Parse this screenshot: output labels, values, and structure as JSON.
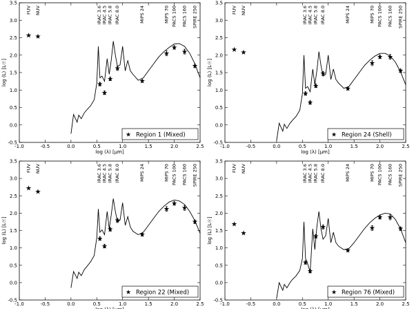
{
  "chart_data": [
    {
      "type": "line",
      "xlabel": "log (λ) [μm]",
      "ylabel": "log (L) [L☉]",
      "xlim": [
        -1.0,
        2.5
      ],
      "ylim": [
        -0.5,
        3.5
      ],
      "xticks": [
        "-1.0",
        "-0.5",
        "0.0",
        "0.5",
        "1.0",
        "1.5",
        "2.0",
        "2.5"
      ],
      "yticks": [
        "-0.5",
        "0.0",
        "0.5",
        "1.0",
        "1.5",
        "2.0",
        "2.5",
        "3.0",
        "3.5"
      ],
      "bands": [
        "FUV",
        "NUV",
        "IRAC 3.6",
        "IRAC 4.5",
        "IRAC 5.8",
        "IRAC 8.0",
        "MIPS 24",
        "MIPS 70",
        "PACS 100",
        "PACS 160",
        "SPIRE 250"
      ],
      "legend": "Region 1 (Mixed)",
      "observations": {
        "x": [
          -0.82,
          -0.64,
          0.56,
          0.65,
          0.76,
          0.9,
          1.38,
          1.85,
          2.0,
          2.2,
          2.4
        ],
        "y": [
          2.56,
          2.53,
          1.17,
          0.92,
          1.32,
          1.62,
          1.26,
          2.05,
          2.22,
          2.1,
          1.69
        ]
      },
      "model": {
        "x": [
          0.0,
          0.05,
          0.12,
          0.15,
          0.2,
          0.26,
          0.3,
          0.38,
          0.45,
          0.5,
          0.53,
          0.56,
          0.6,
          0.65,
          0.7,
          0.74,
          0.78,
          0.82,
          0.86,
          0.9,
          0.95,
          1.0,
          1.05,
          1.1,
          1.15,
          1.2,
          1.3,
          1.4,
          1.5,
          1.6,
          1.7,
          1.8,
          1.9,
          2.0,
          2.1,
          2.2,
          2.3,
          2.4,
          2.5
        ],
        "y": [
          -0.25,
          0.3,
          0.08,
          0.28,
          0.18,
          0.35,
          0.42,
          0.55,
          0.72,
          1.2,
          2.25,
          1.35,
          1.4,
          1.25,
          1.9,
          1.45,
          1.85,
          2.4,
          2.0,
          1.68,
          1.72,
          2.25,
          1.55,
          1.85,
          1.55,
          1.45,
          1.28,
          1.35,
          1.55,
          1.75,
          1.95,
          2.1,
          2.22,
          2.32,
          2.33,
          2.25,
          2.05,
          1.75,
          1.35
        ]
      }
    },
    {
      "type": "line",
      "xlabel": "log (λ) [μm]",
      "ylabel": "log (L) [L☉]",
      "xlim": [
        -1.0,
        2.5
      ],
      "ylim": [
        -0.5,
        3.5
      ],
      "xticks": [
        "-1.0",
        "-0.5",
        "0.0",
        "0.5",
        "1.0",
        "1.5",
        "2.0",
        "2.5"
      ],
      "yticks": [
        "-0.5",
        "0.0",
        "0.5",
        "1.0",
        "1.5",
        "2.0",
        "2.5",
        "3.0",
        "3.5"
      ],
      "bands": [
        "FUV",
        "NUV",
        "IRAC 3.6",
        "IRAC 4.5",
        "IRAC 5.8",
        "IRAC 8.0",
        "MIPS 24",
        "MIPS 70",
        "PACS 100",
        "PACS 160",
        "SPIRE 250"
      ],
      "legend": "Region 24 (Shell)",
      "observations": {
        "x": [
          -0.82,
          -0.64,
          0.56,
          0.65,
          0.76,
          0.9,
          1.38,
          1.85,
          2.0,
          2.2,
          2.4
        ],
        "y": [
          2.16,
          2.08,
          0.9,
          0.64,
          1.12,
          1.47,
          1.04,
          1.77,
          1.95,
          1.95,
          1.55
        ]
      },
      "model": {
        "x": [
          0.0,
          0.05,
          0.12,
          0.15,
          0.2,
          0.26,
          0.3,
          0.38,
          0.45,
          0.5,
          0.53,
          0.56,
          0.6,
          0.65,
          0.7,
          0.74,
          0.78,
          0.82,
          0.86,
          0.9,
          0.95,
          1.0,
          1.05,
          1.1,
          1.15,
          1.2,
          1.3,
          1.4,
          1.5,
          1.6,
          1.7,
          1.8,
          1.9,
          2.0,
          2.1,
          2.2,
          2.3,
          2.4,
          2.5
        ],
        "y": [
          -0.45,
          0.05,
          -0.18,
          0.02,
          -0.1,
          0.05,
          0.12,
          0.25,
          0.42,
          0.9,
          2.0,
          1.05,
          1.1,
          0.95,
          1.6,
          1.15,
          1.55,
          2.1,
          1.7,
          1.4,
          1.45,
          2.0,
          1.3,
          1.6,
          1.3,
          1.2,
          1.05,
          1.1,
          1.3,
          1.5,
          1.7,
          1.85,
          1.97,
          2.05,
          2.05,
          1.98,
          1.8,
          1.52,
          1.15
        ]
      }
    },
    {
      "type": "line",
      "xlabel": "log (λ) [μm]",
      "ylabel": "log (L) [L☉]",
      "xlim": [
        -1.0,
        2.5
      ],
      "ylim": [
        -0.5,
        3.5
      ],
      "xticks": [
        "-1.0",
        "-0.5",
        "0.0",
        "0.5",
        "1.0",
        "1.5",
        "2.0",
        "2.5"
      ],
      "yticks": [
        "-0.5",
        "0.0",
        "0.5",
        "1.0",
        "1.5",
        "2.0",
        "2.5",
        "3.0",
        "3.5"
      ],
      "bands": [
        "FUV",
        "NUV",
        "IRAC 3.6",
        "IRAC 4.5",
        "IRAC 5.8",
        "IRAC 8.0",
        "MIPS 24",
        "MIPS 70",
        "PACS 100",
        "PACS 160",
        "SPIRE 250"
      ],
      "legend": "Region 22 (Mixed)",
      "observations": {
        "x": [
          -0.82,
          -0.64,
          0.56,
          0.65,
          0.76,
          0.9,
          1.38,
          1.85,
          2.0,
          2.2,
          2.4
        ],
        "y": [
          2.72,
          2.62,
          1.27,
          1.05,
          1.53,
          1.79,
          1.38,
          2.12,
          2.28,
          2.15,
          1.75
        ]
      },
      "model": {
        "x": [
          0.0,
          0.05,
          0.12,
          0.15,
          0.2,
          0.26,
          0.3,
          0.38,
          0.45,
          0.5,
          0.53,
          0.56,
          0.6,
          0.65,
          0.7,
          0.74,
          0.78,
          0.82,
          0.86,
          0.9,
          0.95,
          1.0,
          1.05,
          1.1,
          1.15,
          1.2,
          1.3,
          1.4,
          1.5,
          1.6,
          1.7,
          1.8,
          1.9,
          2.0,
          2.1,
          2.2,
          2.3,
          2.4,
          2.5
        ],
        "y": [
          -0.15,
          0.32,
          0.12,
          0.3,
          0.2,
          0.38,
          0.45,
          0.6,
          0.78,
          1.3,
          2.12,
          1.45,
          1.52,
          1.38,
          2.05,
          1.55,
          1.95,
          2.42,
          2.05,
          1.75,
          1.8,
          2.3,
          1.65,
          1.9,
          1.6,
          1.48,
          1.38,
          1.45,
          1.65,
          1.85,
          2.05,
          2.2,
          2.32,
          2.38,
          2.35,
          2.25,
          2.05,
          1.78,
          1.42
        ]
      }
    },
    {
      "type": "line",
      "xlabel": "log (λ) [μm]",
      "ylabel": "log (L) [L☉]",
      "xlim": [
        -1.0,
        2.5
      ],
      "ylim": [
        -0.5,
        3.5
      ],
      "xticks": [
        "-1.0",
        "-0.5",
        "0.0",
        "0.5",
        "1.0",
        "1.5",
        "2.0",
        "2.5"
      ],
      "yticks": [
        "-0.5",
        "0.0",
        "0.5",
        "1.0",
        "1.5",
        "2.0",
        "2.5",
        "3.0",
        "3.5"
      ],
      "bands": [
        "FUV",
        "NUV",
        "IRAC 3.6",
        "IRAC 4.5",
        "IRAC 5.8",
        "IRAC 8.0",
        "MIPS 24",
        "MIPS 70",
        "PACS 100",
        "PACS 160",
        "SPIRE 250"
      ],
      "legend": "Region 76 (Mixed)",
      "observations": {
        "x": [
          -0.82,
          -0.64,
          0.56,
          0.65,
          0.76,
          0.9,
          1.38,
          1.85,
          2.0,
          2.2,
          2.4
        ],
        "y": [
          1.68,
          1.42,
          0.58,
          0.33,
          1.33,
          1.6,
          0.93,
          1.57,
          1.88,
          1.88,
          1.55
        ]
      },
      "model": {
        "x": [
          0.0,
          0.05,
          0.12,
          0.15,
          0.2,
          0.26,
          0.3,
          0.38,
          0.45,
          0.5,
          0.53,
          0.56,
          0.6,
          0.65,
          0.7,
          0.74,
          0.78,
          0.82,
          0.86,
          0.9,
          0.95,
          1.0,
          1.05,
          1.1,
          1.15,
          1.2,
          1.3,
          1.4,
          1.5,
          1.6,
          1.7,
          1.8,
          1.9,
          2.0,
          2.1,
          2.2,
          2.3,
          2.4,
          2.5
        ],
        "y": [
          -0.45,
          0.0,
          -0.22,
          -0.05,
          -0.15,
          0.0,
          0.08,
          0.2,
          0.35,
          0.7,
          1.75,
          0.7,
          0.55,
          0.3,
          1.55,
          0.95,
          1.6,
          2.05,
          1.55,
          1.25,
          1.35,
          1.85,
          1.15,
          1.45,
          1.15,
          1.05,
          0.95,
          0.98,
          1.15,
          1.35,
          1.55,
          1.72,
          1.85,
          1.95,
          2.0,
          1.98,
          1.82,
          1.55,
          1.15
        ]
      }
    }
  ]
}
